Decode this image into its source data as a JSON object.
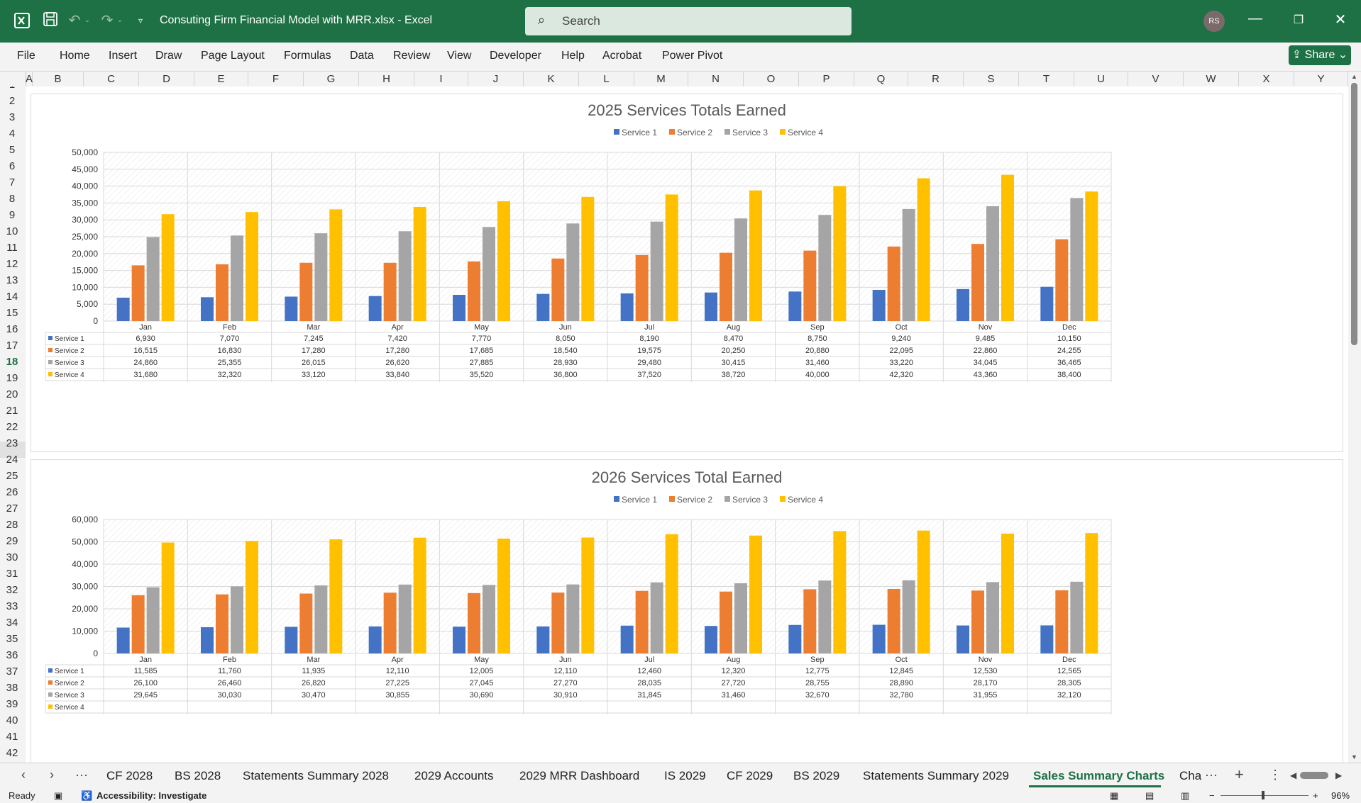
{
  "titlebar": {
    "file_title": "Consuting Firm Financial Model with MRR.xlsx  -  Excel",
    "search_placeholder": "Search",
    "avatar": "RS"
  },
  "menu": [
    "File",
    "Home",
    "Insert",
    "Draw",
    "Page Layout",
    "Formulas",
    "Data",
    "Review",
    "View",
    "Developer",
    "Help",
    "Acrobat",
    "Power Pivot"
  ],
  "share_label": "Share",
  "columns": [
    "A",
    "B",
    "C",
    "D",
    "E",
    "F",
    "G",
    "H",
    "I",
    "J",
    "K",
    "L",
    "M",
    "N",
    "O",
    "P",
    "Q",
    "R",
    "S",
    "T",
    "U",
    "V",
    "W",
    "X",
    "Y"
  ],
  "rows": [
    "1",
    "2",
    "3",
    "4",
    "5",
    "6",
    "7",
    "8",
    "9",
    "10",
    "11",
    "12",
    "13",
    "14",
    "15",
    "16",
    "17",
    "18",
    "19",
    "20",
    "21",
    "22",
    "23",
    "24",
    "25",
    "26",
    "27",
    "28",
    "29",
    "30",
    "31",
    "32",
    "33",
    "34",
    "35",
    "36",
    "37",
    "38",
    "39",
    "40",
    "41",
    "42"
  ],
  "selected_row": "18",
  "sheet_tabs": [
    "CF 2028",
    "BS 2028",
    "Statements Summary 2028",
    "2029 Accounts",
    "2029 MRR Dashboard",
    "IS 2029",
    "CF 2029",
    "BS 2029",
    "Statements Summary 2029",
    "Sales Summary Charts",
    "Cha"
  ],
  "active_tab": "Sales Summary Charts",
  "status": {
    "ready": "Ready",
    "accessibility": "Accessibility: Investigate",
    "zoom": "96%"
  },
  "colors": {
    "excel_green": "#1e7145",
    "service1": "#4472c4",
    "service2": "#ed7d31",
    "service3": "#a5a5a5",
    "service4": "#ffc000"
  },
  "chart_data": [
    {
      "type": "bar",
      "title": "2025 Services Totals Earned",
      "legend_position": "top",
      "grid": true,
      "categories": [
        "Jan",
        "Feb",
        "Mar",
        "Apr",
        "May",
        "Jun",
        "Jul",
        "Aug",
        "Sep",
        "Oct",
        "Nov",
        "Dec"
      ],
      "yticks": [
        "50,000",
        "45,000",
        "40,000",
        "35,000",
        "30,000",
        "25,000",
        "20,000",
        "15,000",
        "10,000",
        "5,000",
        "0"
      ],
      "ylim": [
        0,
        50000
      ],
      "series": [
        {
          "name": "Service 1",
          "values": [
            6930,
            7070,
            7245,
            7420,
            7770,
            8050,
            8190,
            8470,
            8750,
            9240,
            9485,
            10150
          ],
          "labels": [
            "6,930",
            "7,070",
            "7,245",
            "7,420",
            "7,770",
            "8,050",
            "8,190",
            "8,470",
            "8,750",
            "9,240",
            "9,485",
            "10,150"
          ]
        },
        {
          "name": "Service 2",
          "values": [
            16515,
            16830,
            17280,
            17280,
            17685,
            18540,
            19575,
            20250,
            20880,
            22095,
            22860,
            24255
          ],
          "labels": [
            "16,515",
            "16,830",
            "17,280",
            "17,280",
            "17,685",
            "18,540",
            "19,575",
            "20,250",
            "20,880",
            "22,095",
            "22,860",
            "24,255"
          ]
        },
        {
          "name": "Service 3",
          "values": [
            24860,
            25355,
            26015,
            26620,
            27885,
            28930,
            29480,
            30415,
            31460,
            33220,
            34045,
            36465
          ],
          "labels": [
            "24,860",
            "25,355",
            "26,015",
            "26,620",
            "27,885",
            "28,930",
            "29,480",
            "30,415",
            "31,460",
            "33,220",
            "34,045",
            "36,465"
          ]
        },
        {
          "name": "Service 4",
          "values": [
            31680,
            32320,
            33120,
            33840,
            35520,
            36800,
            37520,
            38720,
            40000,
            42320,
            43360,
            38400
          ],
          "labels": [
            "31,680",
            "32,320",
            "33,120",
            "33,840",
            "35,520",
            "36,800",
            "37,520",
            "38,720",
            "40,000",
            "42,320",
            "43,360",
            "38,400"
          ]
        }
      ]
    },
    {
      "type": "bar",
      "title": "2026 Services Total Earned",
      "legend_position": "top",
      "grid": true,
      "categories": [
        "Jan",
        "Feb",
        "Mar",
        "Apr",
        "May",
        "Jun",
        "Jul",
        "Aug",
        "Sep",
        "Oct",
        "Nov",
        "Dec"
      ],
      "yticks": [
        "60,000",
        "50,000",
        "40,000",
        "30,000",
        "20,000",
        "10,000",
        "0"
      ],
      "ylim": [
        0,
        60000
      ],
      "series": [
        {
          "name": "Service 1",
          "values": [
            11585,
            11760,
            11935,
            12110,
            12005,
            12110,
            12460,
            12320,
            12775,
            12845,
            12530,
            12565
          ],
          "labels": [
            "11,585",
            "11,760",
            "11,935",
            "12,110",
            "12,005",
            "12,110",
            "12,460",
            "12,320",
            "12,775",
            "12,845",
            "12,530",
            "12,565"
          ]
        },
        {
          "name": "Service 2",
          "values": [
            26100,
            26460,
            26820,
            27225,
            27045,
            27270,
            28035,
            27720,
            28755,
            28890,
            28170,
            28305
          ],
          "labels": [
            "26,100",
            "26,460",
            "26,820",
            "27,225",
            "27,045",
            "27,270",
            "28,035",
            "27,720",
            "28,755",
            "28,890",
            "28,170",
            "28,305"
          ]
        },
        {
          "name": "Service 3",
          "values": [
            29645,
            30030,
            30470,
            30855,
            30690,
            30910,
            31845,
            31460,
            32670,
            32780,
            31955,
            32120
          ],
          "labels": [
            "29,645",
            "30,030",
            "30,470",
            "30,855",
            "30,690",
            "30,910",
            "31,845",
            "31,460",
            "32,670",
            "32,780",
            "31,955",
            "32,120"
          ]
        },
        {
          "name": "Service 4",
          "values": [
            49680,
            50400,
            51120,
            51840,
            51440,
            51920,
            53440,
            52800,
            54800,
            55040,
            53680,
            53920
          ]
        }
      ]
    }
  ]
}
